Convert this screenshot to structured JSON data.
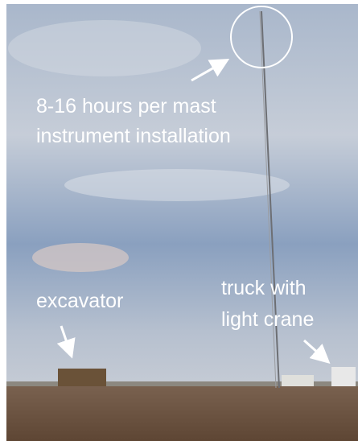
{
  "annotations": [
    {
      "lines": [
        "8-16 hours per mast",
        "instrument installation"
      ]
    },
    {
      "lines": [
        "excavator"
      ]
    },
    {
      "lines": [
        "truck with",
        "light crane"
      ]
    }
  ]
}
